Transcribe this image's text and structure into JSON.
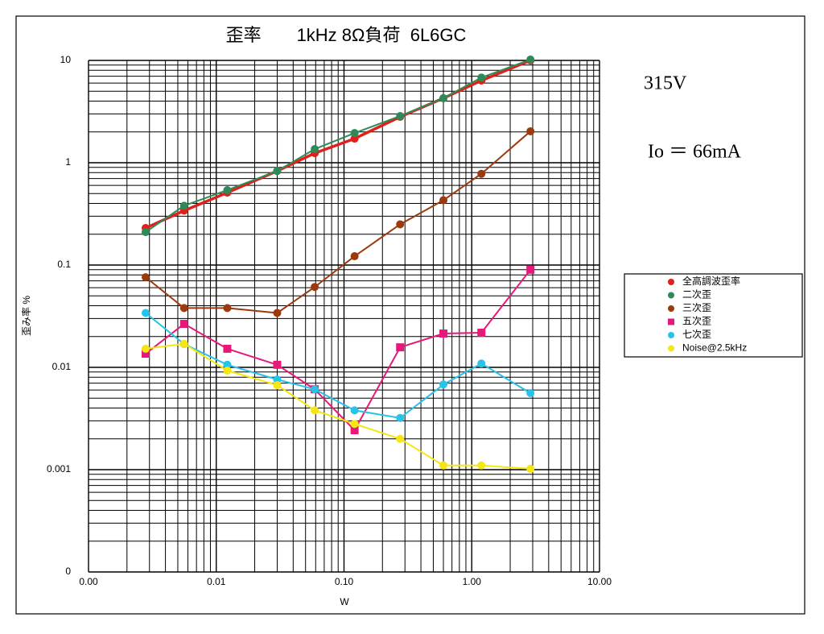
{
  "chart_data": {
    "type": "line",
    "title": "歪率　　1kHz 8Ω負荷  6L6GC",
    "xlabel": "W",
    "ylabel": "歪み率 %",
    "xscale": "log",
    "yscale": "log",
    "grid": true,
    "legend_position": "right",
    "annotations": [
      "315V",
      "Io ＝ 66mA"
    ],
    "xlim": [
      0.001,
      10
    ],
    "xticks": [
      {
        "value": 0.001,
        "label": "0.00"
      },
      0.01,
      {
        "value": 0.1,
        "label": "0.10"
      },
      {
        "value": 1,
        "label": "1.00"
      },
      {
        "value": 10,
        "label": "10.00"
      }
    ],
    "ylim": [
      0.0001,
      10
    ],
    "yticks": [
      {
        "value": 0.0001,
        "label": "0"
      },
      0.001,
      0.01,
      0.1,
      1,
      10
    ],
    "x": [
      0.0028,
      0.0056,
      0.0122,
      0.03,
      0.059,
      0.121,
      0.275,
      0.6,
      1.19,
      2.88
    ],
    "series": [
      {
        "name": "全高調波歪率",
        "color": "#e0201c",
        "marker": "circle",
        "values": [
          0.23,
          0.34,
          0.51,
          0.83,
          1.24,
          1.72,
          2.81,
          4.27,
          6.36,
          10
        ]
      },
      {
        "name": "二次歪",
        "color": "#2e8b57",
        "marker": "circle",
        "values": [
          0.21,
          0.38,
          0.54,
          0.83,
          1.36,
          1.95,
          2.86,
          4.27,
          6.8,
          10.2
        ]
      },
      {
        "name": "三次歪",
        "color": "#9b3a0e",
        "marker": "circle",
        "values": [
          0.076,
          0.038,
          0.038,
          0.034,
          0.061,
          0.122,
          0.25,
          0.43,
          0.78,
          2.03
        ]
      },
      {
        "name": "五次歪",
        "color": "#e6197a",
        "marker": "square",
        "values": [
          0.0136,
          0.0266,
          0.0152,
          0.0106,
          0.0061,
          0.00243,
          0.0157,
          0.0214,
          0.0218,
          0.09
        ]
      },
      {
        "name": "七次歪",
        "color": "#27c3e8",
        "marker": "circle",
        "values": [
          0.034,
          0.0169,
          0.0106,
          0.0076,
          0.0061,
          0.0038,
          0.0032,
          0.0068,
          0.0109,
          0.0056
        ]
      },
      {
        "name": "Noise@2.5kHz",
        "color": "#f5e614",
        "marker": "circle",
        "values": [
          0.0152,
          0.017,
          0.0093,
          0.0067,
          0.0038,
          0.0028,
          0.002,
          0.0011,
          0.0011,
          0.00102
        ]
      }
    ]
  }
}
